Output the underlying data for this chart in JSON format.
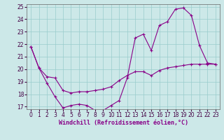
{
  "xlabel": "Windchill (Refroidissement éolien,°C)",
  "bg_color": "#cce8e8",
  "line_color": "#880088",
  "grid_color": "#99cccc",
  "xlim": [
    -0.5,
    23.5
  ],
  "ylim": [
    16.8,
    25.2
  ],
  "yticks": [
    17,
    18,
    19,
    20,
    21,
    22,
    23,
    24,
    25
  ],
  "xticks": [
    0,
    1,
    2,
    3,
    4,
    5,
    6,
    7,
    8,
    9,
    10,
    11,
    12,
    13,
    14,
    15,
    16,
    17,
    18,
    19,
    20,
    21,
    22,
    23
  ],
  "series1_x": [
    0,
    1,
    2,
    3,
    4,
    5,
    6,
    7,
    8,
    9,
    10,
    11,
    12,
    13,
    14,
    15,
    16,
    17,
    18,
    19,
    20,
    21,
    22,
    23
  ],
  "series1_y": [
    21.8,
    20.1,
    18.9,
    17.8,
    16.9,
    17.1,
    17.2,
    17.1,
    16.7,
    16.7,
    17.1,
    17.5,
    19.3,
    22.5,
    22.8,
    21.5,
    23.5,
    23.8,
    24.8,
    24.9,
    24.3,
    21.9,
    20.5,
    20.4
  ],
  "series2_x": [
    0,
    1,
    2,
    3,
    4,
    5,
    6,
    7,
    8,
    9,
    10,
    11,
    12,
    13,
    14,
    15,
    16,
    17,
    18,
    19,
    20,
    21,
    22,
    23
  ],
  "series2_y": [
    21.8,
    20.1,
    19.4,
    19.3,
    18.3,
    18.1,
    18.2,
    18.2,
    18.3,
    18.4,
    18.6,
    19.1,
    19.5,
    19.8,
    19.8,
    19.5,
    19.9,
    20.1,
    20.2,
    20.3,
    20.4,
    20.4,
    20.4,
    20.4
  ],
  "tick_fontsize": 5.5,
  "xlabel_fontsize": 6.0
}
